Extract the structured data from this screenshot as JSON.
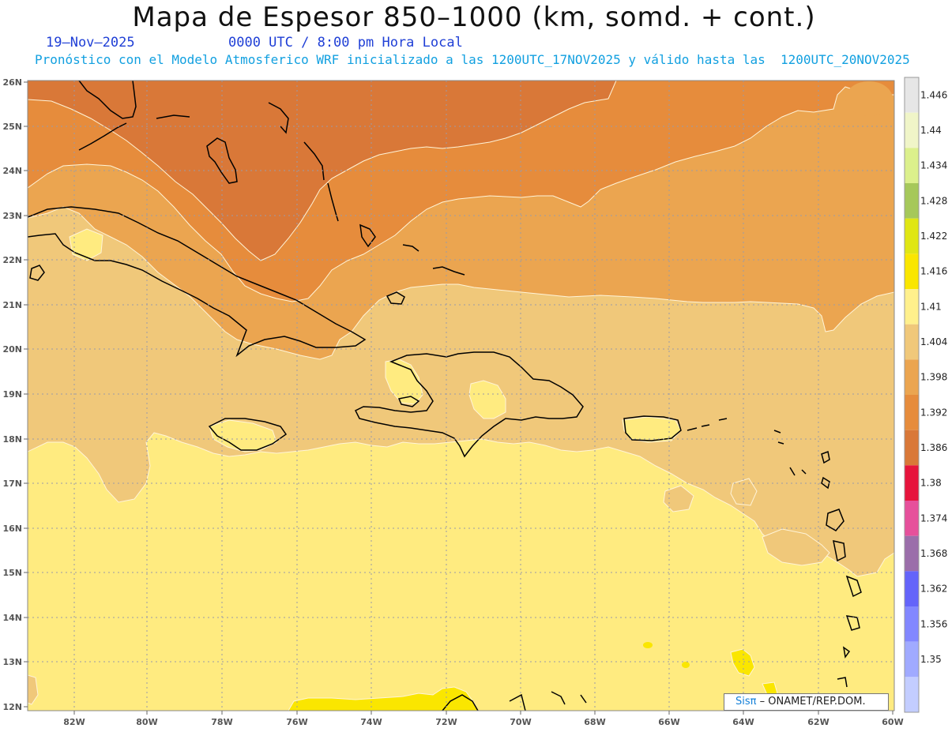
{
  "header": {
    "title": "Mapa de Espesor 850–1000 (km, somd. + cont.)",
    "date": "19–Nov–2025",
    "time": "0000 UTC / 8:00 pm Hora Local",
    "description": "Pronóstico con el Modelo Atmosferico WRF inicializado a las 1200UTC_17NOV2025 y válido hasta las  1200UTC_20NOV2025"
  },
  "map": {
    "lon_labels": [
      "82W",
      "80W",
      "78W",
      "76W",
      "74W",
      "72W",
      "70W",
      "68W",
      "66W",
      "64W",
      "62W",
      "60W"
    ],
    "lat_labels": [
      "26N",
      "25N",
      "24N",
      "23N",
      "22N",
      "21N",
      "20N",
      "19N",
      "18N",
      "17N",
      "16N",
      "15N",
      "14N",
      "13N",
      "12N"
    ],
    "lon_range": [
      -83.3,
      -60.0
    ],
    "lat_range": [
      11.9,
      26.0
    ],
    "grid": true
  },
  "colorbar": {
    "levels": [
      "1.446",
      "1.44",
      "1.434",
      "1.428",
      "1.422",
      "1.416",
      "1.41",
      "1.404",
      "1.398",
      "1.392",
      "1.386",
      "1.38",
      "1.374",
      "1.368",
      "1.362",
      "1.356",
      "1.35"
    ],
    "colors": [
      "#e6e6e6",
      "#f0f5c8",
      "#dcf08c",
      "#a6c85a",
      "#e0e614",
      "#fae600",
      "#fff08c",
      "#f0c87a",
      "#eba550",
      "#e68c3c",
      "#d97838",
      "#e6143c",
      "#e6509b",
      "#9b6eaa",
      "#6464fa",
      "#8287ff",
      "#a0aaff",
      "#c3cdff"
    ]
  },
  "credit": {
    "brand": "Sisπ",
    "org": "– ONAMET/REP.DOM."
  }
}
